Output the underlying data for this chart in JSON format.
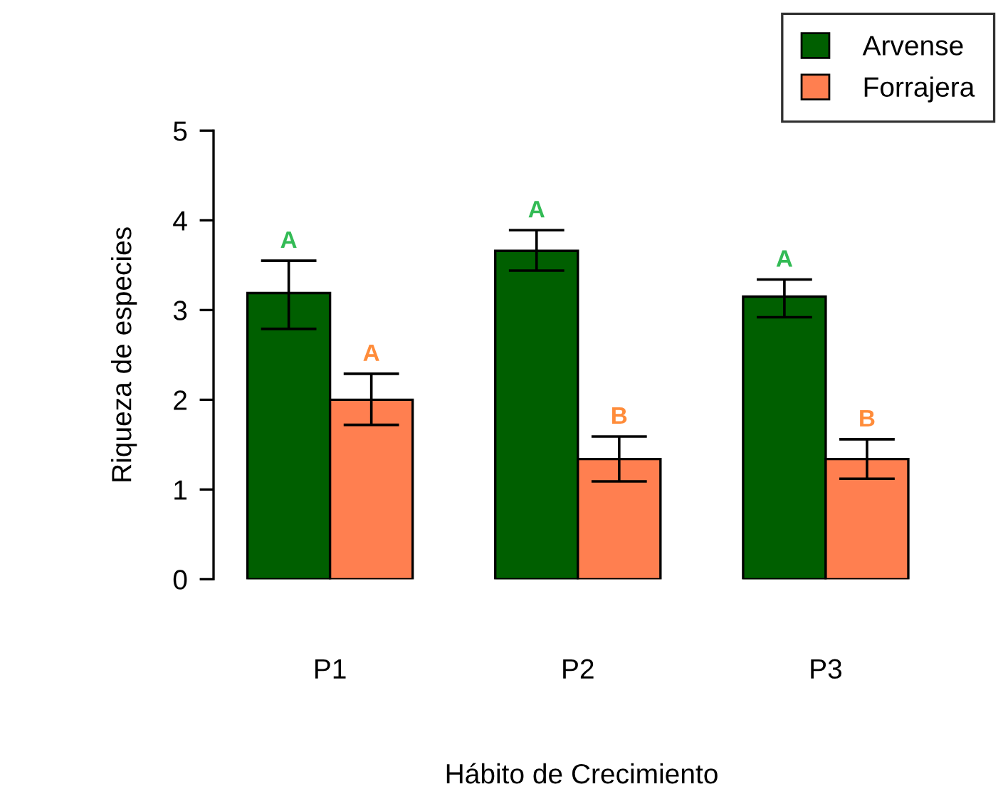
{
  "chart_data": {
    "type": "bar",
    "xlabel": "Hábito de Crecimiento",
    "ylabel": "Riqueza de especies",
    "categories": [
      "P1",
      "P2",
      "P3"
    ],
    "series": [
      {
        "name": "Arvense",
        "color": "#005f00",
        "values": [
          3.19,
          3.66,
          3.15
        ],
        "errors": [
          [
            2.79,
            3.55
          ],
          [
            3.44,
            3.89
          ],
          [
            2.92,
            3.34
          ]
        ]
      },
      {
        "name": "Forrajera",
        "color": "#ff7f50",
        "values": [
          2.0,
          1.34,
          1.34
        ],
        "errors": [
          [
            1.72,
            2.29
          ],
          [
            1.09,
            1.59
          ],
          [
            1.12,
            1.56
          ]
        ]
      }
    ],
    "ylim": [
      0,
      5
    ],
    "yticks": [
      0,
      1,
      2,
      3,
      4,
      5
    ],
    "grid": false,
    "legend": "top right",
    "annotations": [
      "A",
      "A",
      "A",
      "B",
      "A",
      "B"
    ]
  }
}
